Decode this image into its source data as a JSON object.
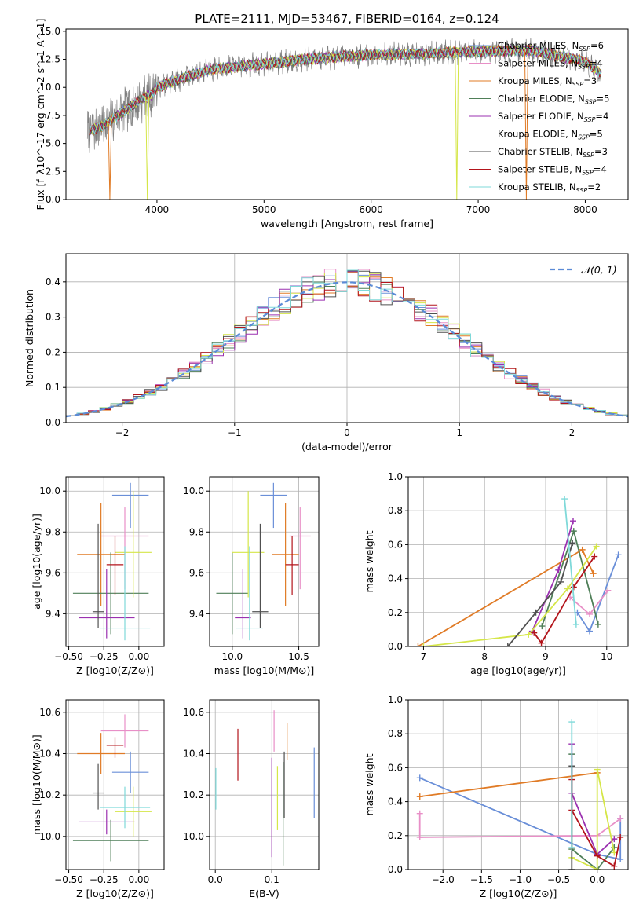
{
  "figure": {
    "title": "PLATE=2111, MJD=53467, FIBERID=0164, z=0.124"
  },
  "models": [
    {
      "name": "Chabrier MILES",
      "nssp": "6",
      "color": "#6a8fd8"
    },
    {
      "name": "Salpeter MILES",
      "nssp": "4",
      "color": "#e88fc7"
    },
    {
      "name": "Kroupa MILES",
      "nssp": "3",
      "color": "#e07b26"
    },
    {
      "name": "Chabrier ELODIE",
      "nssp": "5",
      "color": "#4f7f58"
    },
    {
      "name": "Salpeter ELODIE",
      "nssp": "4",
      "color": "#9b30b0"
    },
    {
      "name": "Kroupa ELODIE",
      "nssp": "5",
      "color": "#d5e648"
    },
    {
      "name": "Chabrier STELIB",
      "nssp": "3",
      "color": "#505050"
    },
    {
      "name": "Salpeter STELIB",
      "nssp": "4",
      "color": "#b3141b"
    },
    {
      "name": "Kroupa STELIB",
      "nssp": "2",
      "color": "#7fd9d9"
    }
  ],
  "chart_data": [
    {
      "id": "spectrum",
      "type": "line",
      "xlabel": "wavelength [Angstrom, rest frame]",
      "ylabel": "Flux [f_λ10^-17 erg cm^-2 s^-1 A^-1]",
      "xlim": [
        3150,
        8400
      ],
      "ylim": [
        0,
        15.2
      ],
      "xticks": [
        4000,
        5000,
        6000,
        7000,
        8000
      ],
      "yticks": [
        0.0,
        2.5,
        5.0,
        7.5,
        10.0,
        12.5,
        15.0
      ],
      "grid": false,
      "legend": "top-right",
      "data_color": "#808080",
      "data_range": [
        3350,
        8150
      ],
      "continuum_points": [
        [
          3350,
          6.0
        ],
        [
          3500,
          6.6
        ],
        [
          3650,
          7.6
        ],
        [
          3800,
          8.6
        ],
        [
          3950,
          9.4
        ],
        [
          4000,
          10.0
        ],
        [
          4200,
          10.7
        ],
        [
          4500,
          11.6
        ],
        [
          4800,
          11.9
        ],
        [
          5000,
          12.1
        ],
        [
          5200,
          12.3
        ],
        [
          5500,
          12.6
        ],
        [
          6000,
          12.9
        ],
        [
          6500,
          13.0
        ],
        [
          7000,
          13.2
        ],
        [
          7500,
          13.3
        ],
        [
          8000,
          12.3
        ],
        [
          8150,
          11.2
        ]
      ],
      "drops": [
        {
          "model": 2,
          "x": 3560,
          "y": 0.0
        },
        {
          "model": 2,
          "x": 7450,
          "y": 0.0
        },
        {
          "model": 5,
          "x": 3910,
          "y": 0.0
        },
        {
          "model": 5,
          "x": 6800,
          "y": 0.0
        }
      ]
    },
    {
      "id": "residuals",
      "type": "step",
      "xlabel": "(data-model)/error",
      "ylabel": "Normed distribution",
      "xlim": [
        -2.5,
        2.5
      ],
      "ylim": [
        0,
        0.48
      ],
      "xticks": [
        -2,
        -1,
        0,
        1,
        2
      ],
      "yticks": [
        0.0,
        0.1,
        0.2,
        0.3,
        0.4
      ],
      "bin_width": 0.1,
      "grid": true,
      "legend": "top-right",
      "reference_label": "𝒩(0, 1)",
      "reference_color": "#5b8bd6"
    },
    {
      "id": "age_vs_Z",
      "type": "errorbar",
      "xlabel": "Z [log10(Z/Z⊙)]",
      "ylabel": "age [log10(age/yr)]",
      "xlim": [
        -0.52,
        0.18
      ],
      "ylim": [
        9.24,
        10.07
      ],
      "xticks": [
        -0.5,
        -0.25,
        0.0
      ],
      "yticks": [
        9.4,
        9.6,
        9.8,
        10.0
      ],
      "grid": true,
      "points": [
        {
          "model": 0,
          "x": -0.06,
          "y": 9.98,
          "xerr": 0.13,
          "yerr": [
            0.16,
            0.06
          ]
        },
        {
          "model": 1,
          "x": -0.1,
          "y": 9.78,
          "xerr": 0.17,
          "yerr": [
            0.26,
            0.14
          ]
        },
        {
          "model": 2,
          "x": -0.27,
          "y": 9.69,
          "xerr": 0.17,
          "yerr": [
            0.25,
            0.25
          ]
        },
        {
          "model": 3,
          "x": -0.2,
          "y": 9.5,
          "xerr": 0.27,
          "yerr": [
            0.2,
            0.2
          ]
        },
        {
          "model": 4,
          "x": -0.23,
          "y": 9.38,
          "xerr": 0.2,
          "yerr": [
            0.1,
            0.24
          ]
        },
        {
          "model": 5,
          "x": -0.04,
          "y": 9.7,
          "xerr": 0.13,
          "yerr": [
            0.22,
            0.3
          ]
        },
        {
          "model": 6,
          "x": -0.29,
          "y": 9.41,
          "xerr": 0.04,
          "yerr": [
            0.08,
            0.43
          ]
        },
        {
          "model": 7,
          "x": -0.17,
          "y": 9.64,
          "xerr": 0.06,
          "yerr": [
            0.15,
            0.14
          ]
        },
        {
          "model": 8,
          "x": -0.1,
          "y": 9.33,
          "xerr": 0.18,
          "yerr": [
            0.06,
            0.4
          ]
        }
      ]
    },
    {
      "id": "age_vs_mass",
      "type": "errorbar",
      "xlabel": "mass [log10(M/M⊙)]",
      "ylabel": "",
      "xlim": [
        9.83,
        10.65
      ],
      "ylim": [
        9.24,
        10.07
      ],
      "xticks": [
        10.0,
        10.5
      ],
      "yticks": [
        9.4,
        9.6,
        9.8,
        10.0
      ],
      "grid": true,
      "points": [
        {
          "model": 0,
          "x": 10.31,
          "y": 9.98,
          "xerr": 0.1,
          "yerr": [
            0.16,
            0.06
          ]
        },
        {
          "model": 1,
          "x": 10.51,
          "y": 9.78,
          "xerr": 0.08,
          "yerr": [
            0.26,
            0.14
          ]
        },
        {
          "model": 2,
          "x": 10.4,
          "y": 9.69,
          "xerr": 0.1,
          "yerr": [
            0.25,
            0.25
          ]
        },
        {
          "model": 3,
          "x": 10.0,
          "y": 9.5,
          "xerr": 0.12,
          "yerr": [
            0.2,
            0.2
          ]
        },
        {
          "model": 4,
          "x": 10.08,
          "y": 9.38,
          "xerr": 0.06,
          "yerr": [
            0.1,
            0.24
          ]
        },
        {
          "model": 5,
          "x": 10.12,
          "y": 9.7,
          "xerr": 0.12,
          "yerr": [
            0.22,
            0.3
          ]
        },
        {
          "model": 6,
          "x": 10.21,
          "y": 9.41,
          "xerr": 0.06,
          "yerr": [
            0.08,
            0.43
          ]
        },
        {
          "model": 7,
          "x": 10.45,
          "y": 9.64,
          "xerr": 0.05,
          "yerr": [
            0.15,
            0.14
          ]
        },
        {
          "model": 8,
          "x": 10.13,
          "y": 9.33,
          "xerr": 0.1,
          "yerr": [
            0.06,
            0.4
          ]
        }
      ]
    },
    {
      "id": "weight_vs_age",
      "type": "line",
      "xlabel": "age [log10(age/yr)]",
      "ylabel": "mass weight",
      "xlim": [
        6.75,
        10.35
      ],
      "ylim": [
        0,
        1.0
      ],
      "xticks": [
        7,
        8,
        9,
        10
      ],
      "yticks": [
        0.0,
        0.2,
        0.4,
        0.6,
        0.8,
        1.0
      ],
      "grid": true,
      "series": [
        {
          "model": 0,
          "points": [
            [
              9.52,
              0.2
            ],
            [
              9.72,
              0.09
            ],
            [
              10.19,
              0.54
            ]
          ]
        },
        {
          "model": 1,
          "points": [
            [
              9.4,
              0.29
            ],
            [
              9.72,
              0.19
            ],
            [
              10.02,
              0.33
            ]
          ]
        },
        {
          "model": 2,
          "points": [
            [
              6.91,
              0.0
            ],
            [
              9.6,
              0.57
            ],
            [
              9.78,
              0.43
            ]
          ]
        },
        {
          "model": 3,
          "points": [
            [
              8.94,
              0.12
            ],
            [
              9.46,
              0.68
            ],
            [
              9.86,
              0.13
            ]
          ]
        },
        {
          "model": 4,
          "points": [
            [
              8.78,
              0.09
            ],
            [
              9.21,
              0.45
            ],
            [
              9.45,
              0.74
            ]
          ]
        },
        {
          "model": 5,
          "points": [
            [
              7.0,
              0.0
            ],
            [
              8.72,
              0.07
            ],
            [
              9.36,
              0.34
            ],
            [
              9.83,
              0.59
            ]
          ]
        },
        {
          "model": 6,
          "points": [
            [
              8.38,
              0.0
            ],
            [
              8.84,
              0.2
            ],
            [
              9.25,
              0.38
            ],
            [
              9.44,
              0.61
            ]
          ]
        },
        {
          "model": 7,
          "points": [
            [
              8.81,
              0.08
            ],
            [
              8.93,
              0.02
            ],
            [
              9.46,
              0.35
            ],
            [
              9.8,
              0.53
            ]
          ]
        },
        {
          "model": 8,
          "points": [
            [
              9.31,
              0.87
            ],
            [
              9.5,
              0.13
            ]
          ]
        }
      ]
    },
    {
      "id": "mass_vs_Z",
      "type": "errorbar",
      "xlabel": "Z [log10(Z/Z⊙)]",
      "ylabel": "mass [log10(M/M⊙)]",
      "xlim": [
        -0.52,
        0.18
      ],
      "ylim": [
        9.84,
        10.66
      ],
      "xticks": [
        -0.5,
        -0.25,
        0.0
      ],
      "yticks": [
        10.0,
        10.2,
        10.4,
        10.6
      ],
      "grid": true,
      "points": [
        {
          "model": 0,
          "x": -0.06,
          "y": 10.31,
          "xerr": 0.13,
          "yerr": [
            0.1,
            0.1
          ]
        },
        {
          "model": 1,
          "x": -0.1,
          "y": 10.51,
          "xerr": 0.17,
          "yerr": [
            0.08,
            0.08
          ]
        },
        {
          "model": 2,
          "x": -0.27,
          "y": 10.4,
          "xerr": 0.17,
          "yerr": [
            0.1,
            0.1
          ]
        },
        {
          "model": 3,
          "x": -0.2,
          "y": 9.98,
          "xerr": 0.27,
          "yerr": [
            0.1,
            0.1
          ]
        },
        {
          "model": 4,
          "x": -0.23,
          "y": 10.07,
          "xerr": 0.2,
          "yerr": [
            0.06,
            0.06
          ]
        },
        {
          "model": 5,
          "x": -0.04,
          "y": 10.12,
          "xerr": 0.13,
          "yerr": [
            0.12,
            0.12
          ]
        },
        {
          "model": 6,
          "x": -0.29,
          "y": 10.21,
          "xerr": 0.04,
          "yerr": [
            0.08,
            0.14
          ]
        },
        {
          "model": 7,
          "x": -0.17,
          "y": 10.44,
          "xerr": 0.06,
          "yerr": [
            0.06,
            0.04
          ]
        },
        {
          "model": 8,
          "x": -0.1,
          "y": 10.14,
          "xerr": 0.18,
          "yerr": [
            0.1,
            0.1
          ]
        }
      ]
    },
    {
      "id": "mass_vs_ebv",
      "type": "errorbar",
      "xlabel": "E(B-V)",
      "ylabel": "",
      "xlim": [
        -0.01,
        0.183
      ],
      "ylim": [
        9.84,
        10.66
      ],
      "xticks": [
        0.0,
        0.1
      ],
      "yticks": [
        10.0,
        10.2,
        10.4,
        10.6
      ],
      "grid": true,
      "points": [
        {
          "model": 0,
          "x": 0.175,
          "y": 10.26,
          "xerr": 0.0,
          "yerr": [
            0.17,
            0.17
          ]
        },
        {
          "model": 1,
          "x": 0.104,
          "y": 10.51,
          "xerr": 0.0,
          "yerr": [
            0.1,
            0.1
          ]
        },
        {
          "model": 2,
          "x": 0.127,
          "y": 10.46,
          "xerr": 0.0,
          "yerr": [
            0.09,
            0.09
          ]
        },
        {
          "model": 3,
          "x": 0.12,
          "y": 10.11,
          "xerr": 0.0,
          "yerr": [
            0.25,
            0.25
          ]
        },
        {
          "model": 4,
          "x": 0.1,
          "y": 10.14,
          "xerr": 0.0,
          "yerr": [
            0.24,
            0.24
          ]
        },
        {
          "model": 5,
          "x": 0.11,
          "y": 10.18,
          "xerr": 0.0,
          "yerr": [
            0.15,
            0.16
          ]
        },
        {
          "model": 6,
          "x": 0.122,
          "y": 10.25,
          "xerr": 0.0,
          "yerr": [
            0.16,
            0.16
          ]
        },
        {
          "model": 7,
          "x": 0.04,
          "y": 10.4,
          "xerr": 0.0,
          "yerr": [
            0.13,
            0.12
          ]
        },
        {
          "model": 8,
          "x": 0.001,
          "y": 10.23,
          "xerr": 0.0,
          "yerr": [
            0.1,
            0.1
          ]
        }
      ]
    },
    {
      "id": "weight_vs_Z",
      "type": "line",
      "xlabel": "Z [log10(Z/Z⊙)]",
      "ylabel": "mass weight",
      "xlim": [
        -2.45,
        0.4
      ],
      "ylim": [
        0,
        1.0
      ],
      "xticks": [
        -2.0,
        -1.5,
        -1.0,
        -0.5,
        0.0
      ],
      "yticks": [
        0.0,
        0.2,
        0.4,
        0.6,
        0.8,
        1.0
      ],
      "grid": true,
      "series": [
        {
          "model": 0,
          "points": [
            [
              -2.3,
              0.54
            ],
            [
              0.0,
              0.09
            ],
            [
              0.3,
              0.06
            ],
            [
              0.3,
              0.3
            ]
          ]
        },
        {
          "model": 1,
          "points": [
            [
              -2.3,
              0.33
            ],
            [
              -2.3,
              0.19
            ],
            [
              0.0,
              0.2
            ],
            [
              0.3,
              0.3
            ]
          ]
        },
        {
          "model": 2,
          "points": [
            [
              -2.3,
              0.43
            ],
            [
              0.0,
              0.57
            ]
          ]
        },
        {
          "model": 3,
          "points": [
            [
              -0.33,
              0.68
            ],
            [
              -0.33,
              0.12
            ],
            [
              0.0,
              0.0
            ],
            [
              0.22,
              0.13
            ]
          ]
        },
        {
          "model": 4,
          "points": [
            [
              -0.33,
              0.74
            ],
            [
              -0.33,
              0.45
            ],
            [
              0.0,
              0.09
            ],
            [
              0.22,
              0.18
            ]
          ]
        },
        {
          "model": 5,
          "points": [
            [
              -0.33,
              0.07
            ],
            [
              0.0,
              0.0
            ],
            [
              0.0,
              0.59
            ],
            [
              0.22,
              0.1
            ]
          ]
        },
        {
          "model": 6,
          "points": [
            [
              -0.33,
              0.61
            ],
            [
              -0.33,
              0.0
            ]
          ]
        },
        {
          "model": 7,
          "points": [
            [
              -0.33,
              0.53
            ],
            [
              -0.33,
              0.35
            ],
            [
              0.0,
              0.08
            ],
            [
              0.22,
              0.02
            ],
            [
              0.3,
              0.19
            ]
          ]
        },
        {
          "model": 8,
          "points": [
            [
              -0.33,
              0.87
            ],
            [
              -0.33,
              0.13
            ]
          ]
        }
      ]
    }
  ]
}
